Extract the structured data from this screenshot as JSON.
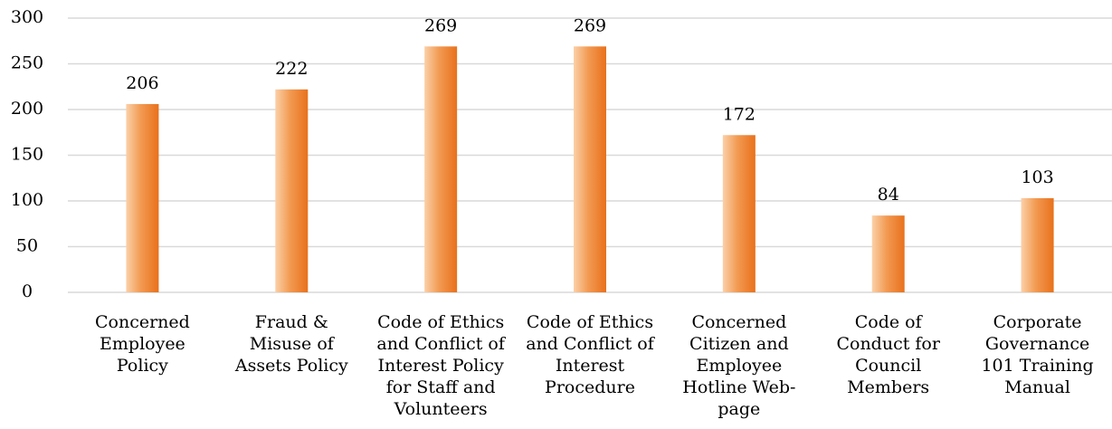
{
  "chart_data": {
    "type": "bar",
    "categories": [
      [
        "Concerned",
        "Employee",
        "Policy"
      ],
      [
        "Fraud &",
        "Misuse of",
        "Assets Policy"
      ],
      [
        "Code of Ethics",
        "and Conflict of",
        "Interest Policy",
        "for Staff and",
        "Volunteers"
      ],
      [
        "Code of Ethics",
        "and Conflict of",
        "Interest",
        "Procedure"
      ],
      [
        "Concerned",
        "Citizen and",
        "Employee",
        "Hotline Web-",
        "page"
      ],
      [
        "Code of",
        "Conduct for",
        "Council",
        "Members"
      ],
      [
        "Corporate",
        "Governance",
        "101 Training",
        "Manual"
      ]
    ],
    "values": [
      206,
      222,
      269,
      269,
      172,
      84,
      103
    ],
    "color": "#e8711c",
    "ylim": [
      0,
      300
    ],
    "yticks": [
      0,
      50,
      100,
      150,
      200,
      250,
      300
    ],
    "grid": true
  }
}
